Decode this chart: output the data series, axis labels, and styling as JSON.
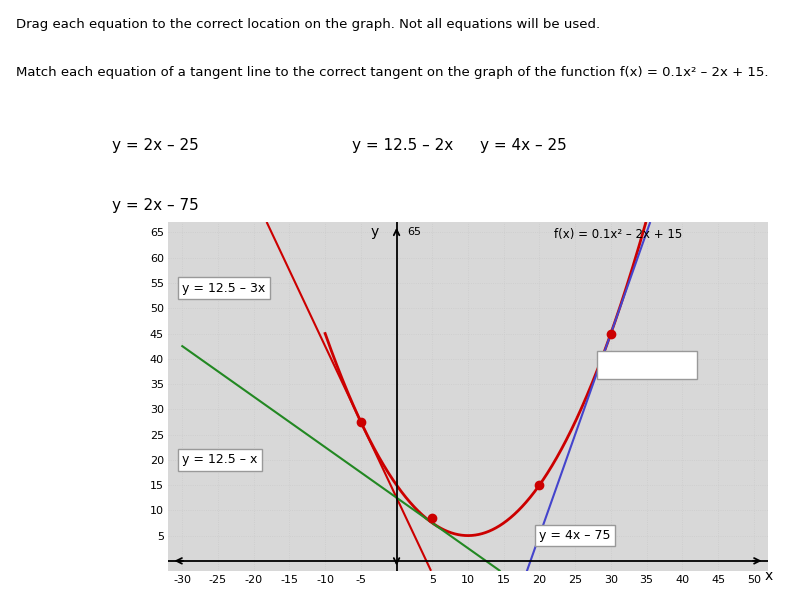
{
  "title_line1": "Drag each equation to the correct location on the graph. Not all equations will be used.",
  "title_line2": "Match each equation of a tangent line to the correct tangent on the graph of the function f(x) = 0.1x² – 2x + 15.",
  "eq_row1": [
    "y = 2x – 25",
    "y = 12.5 – 2x",
    "y = 4x – 25"
  ],
  "eq_row2": [
    "y = 2x – 75"
  ],
  "graph": {
    "xmin": -32,
    "xmax": 52,
    "ymin": -2,
    "ymax": 67,
    "xticks": [
      -30,
      -25,
      -20,
      -15,
      -10,
      -5,
      5,
      10,
      15,
      20,
      25,
      30,
      35,
      40,
      45,
      50
    ],
    "yticks": [
      5,
      10,
      15,
      20,
      25,
      30,
      35,
      40,
      45,
      50,
      55,
      60,
      65
    ],
    "bg_color": "#d8d8d8",
    "grid_color": "#bbbbbb",
    "parabola_color": "#cc0000",
    "tangent1_color": "#cc0000",
    "tangent2_color": "#228822",
    "tangent3_color": "#4444cc",
    "dot_color": "#cc0000",
    "fx_label": "f(x) = 0.1x² – 2x + 15",
    "label_t1": "y = 12.5 – 3x",
    "label_t2": "y = 12.5 – x",
    "label_t3": "y = 4x – 75",
    "dot_points": [
      [
        -5,
        27.5
      ],
      [
        5,
        8.5
      ],
      [
        20,
        15.0
      ],
      [
        30,
        45.0
      ]
    ]
  }
}
